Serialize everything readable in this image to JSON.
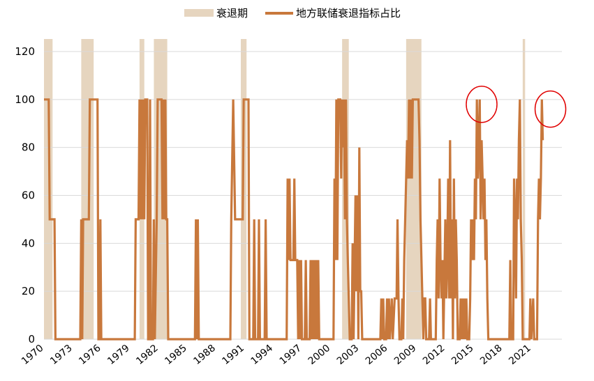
{
  "chart_data": {
    "type": "line",
    "title": "",
    "xlabel": "",
    "ylabel": "",
    "xlim": [
      1970,
      2024.2
    ],
    "ylim": [
      0,
      120
    ],
    "y_ticks": [
      0,
      20,
      40,
      60,
      80,
      100,
      120
    ],
    "x_ticks": [
      1970,
      1973,
      1976,
      1979,
      1982,
      1985,
      1988,
      1991,
      1994,
      1997,
      2000,
      2003,
      2006,
      2009,
      2012,
      2015,
      2018,
      2021
    ],
    "grid": "horizontal",
    "legend_position": "top-center",
    "legend": {
      "recession_label": "衰退期",
      "line_label": "地方联储衰退指标占比"
    },
    "colors": {
      "line": "#C8783C",
      "recession": "#E6D5BF",
      "highlight": "#E00000",
      "grid": "#D9D9D9"
    },
    "recessions": [
      [
        1970.0,
        1970.9
      ],
      [
        1973.9,
        1975.2
      ],
      [
        1980.0,
        1980.5
      ],
      [
        1981.5,
        1982.9
      ],
      [
        1990.6,
        1991.2
      ],
      [
        2001.2,
        2001.9
      ],
      [
        2007.9,
        2009.5
      ],
      [
        2020.1,
        2020.35
      ]
    ],
    "highlights": [
      {
        "x": 2015.8,
        "y": 98
      },
      {
        "x": 2023.0,
        "y": 96
      }
    ],
    "series": [
      {
        "name": "地方联储衰退指标占比",
        "points": [
          [
            1970.0,
            100
          ],
          [
            1970.5,
            100
          ],
          [
            1970.6,
            50
          ],
          [
            1971.1,
            50
          ],
          [
            1971.2,
            0
          ],
          [
            1973.8,
            0
          ],
          [
            1973.9,
            50
          ],
          [
            1974.0,
            0
          ],
          [
            1974.1,
            50
          ],
          [
            1974.7,
            50
          ],
          [
            1974.8,
            100
          ],
          [
            1975.6,
            100
          ],
          [
            1975.7,
            0
          ],
          [
            1975.8,
            0
          ],
          [
            1975.9,
            50
          ],
          [
            1976.0,
            0
          ],
          [
            1979.5,
            0
          ],
          [
            1979.6,
            50
          ],
          [
            1979.9,
            50
          ],
          [
            1980.0,
            100
          ],
          [
            1980.1,
            50
          ],
          [
            1980.2,
            100
          ],
          [
            1980.3,
            50
          ],
          [
            1980.4,
            100
          ],
          [
            1980.5,
            50
          ],
          [
            1980.6,
            100
          ],
          [
            1980.8,
            100
          ],
          [
            1980.9,
            0
          ],
          [
            1981.0,
            0
          ],
          [
            1981.1,
            100
          ],
          [
            1981.2,
            0
          ],
          [
            1981.4,
            0
          ],
          [
            1981.5,
            50
          ],
          [
            1981.6,
            0
          ],
          [
            1981.8,
            50
          ],
          [
            1981.9,
            100
          ],
          [
            1982.3,
            100
          ],
          [
            1982.4,
            50
          ],
          [
            1982.5,
            100
          ],
          [
            1982.6,
            50
          ],
          [
            1982.7,
            100
          ],
          [
            1982.8,
            50
          ],
          [
            1982.9,
            50
          ],
          [
            1983.0,
            0
          ],
          [
            1985.8,
            0
          ],
          [
            1985.9,
            50
          ],
          [
            1986.0,
            0
          ],
          [
            1986.1,
            50
          ],
          [
            1986.2,
            0
          ],
          [
            1989.5,
            0
          ],
          [
            1989.6,
            50
          ],
          [
            1989.8,
            100
          ],
          [
            1990.0,
            50
          ],
          [
            1990.8,
            50
          ],
          [
            1990.9,
            100
          ],
          [
            1991.4,
            100
          ],
          [
            1991.5,
            0
          ],
          [
            1991.9,
            0
          ],
          [
            1992.0,
            50
          ],
          [
            1992.1,
            0
          ],
          [
            1992.4,
            0
          ],
          [
            1992.5,
            50
          ],
          [
            1992.6,
            0
          ],
          [
            1993.1,
            0
          ],
          [
            1993.2,
            50
          ],
          [
            1993.3,
            0
          ],
          [
            1995.4,
            0
          ],
          [
            1995.5,
            67
          ],
          [
            1995.6,
            33
          ],
          [
            1995.7,
            67
          ],
          [
            1995.8,
            33
          ],
          [
            1996.1,
            33
          ],
          [
            1996.2,
            67
          ],
          [
            1996.3,
            33
          ],
          [
            1996.5,
            33
          ],
          [
            1996.6,
            0
          ],
          [
            1996.7,
            33
          ],
          [
            1996.8,
            0
          ],
          [
            1996.9,
            33
          ],
          [
            1997.0,
            0
          ],
          [
            1997.3,
            0
          ],
          [
            1997.4,
            33
          ],
          [
            1997.5,
            0
          ],
          [
            1997.8,
            0
          ],
          [
            1997.9,
            33
          ],
          [
            1998.0,
            0
          ],
          [
            1998.1,
            33
          ],
          [
            1998.2,
            0
          ],
          [
            1998.3,
            33
          ],
          [
            1998.4,
            0
          ],
          [
            1998.5,
            33
          ],
          [
            1998.6,
            0
          ],
          [
            1998.7,
            33
          ],
          [
            1998.8,
            0
          ],
          [
            2000.3,
            0
          ],
          [
            2000.4,
            67
          ],
          [
            2000.5,
            33
          ],
          [
            2000.6,
            100
          ],
          [
            2000.7,
            33
          ],
          [
            2000.8,
            100
          ],
          [
            2001.0,
            100
          ],
          [
            2001.1,
            67
          ],
          [
            2001.2,
            100
          ],
          [
            2001.3,
            80
          ],
          [
            2001.4,
            100
          ],
          [
            2001.5,
            50
          ],
          [
            2001.6,
            100
          ],
          [
            2001.7,
            50
          ],
          [
            2001.8,
            33
          ],
          [
            2002.0,
            0
          ],
          [
            2002.2,
            0
          ],
          [
            2002.3,
            40
          ],
          [
            2002.4,
            0
          ],
          [
            2002.6,
            60
          ],
          [
            2002.7,
            20
          ],
          [
            2002.8,
            60
          ],
          [
            2002.9,
            0
          ],
          [
            2003.0,
            80
          ],
          [
            2003.1,
            20
          ],
          [
            2003.2,
            20
          ],
          [
            2003.3,
            0
          ],
          [
            2005.2,
            0
          ],
          [
            2005.3,
            17
          ],
          [
            2005.4,
            0
          ],
          [
            2005.5,
            17
          ],
          [
            2005.6,
            0
          ],
          [
            2005.8,
            0
          ],
          [
            2005.9,
            17
          ],
          [
            2006.0,
            0
          ],
          [
            2006.1,
            17
          ],
          [
            2006.2,
            0
          ],
          [
            2006.4,
            17
          ],
          [
            2006.5,
            0
          ],
          [
            2006.7,
            17
          ],
          [
            2006.9,
            17
          ],
          [
            2007.0,
            50
          ],
          [
            2007.1,
            17
          ],
          [
            2007.2,
            0
          ],
          [
            2007.4,
            0
          ],
          [
            2007.5,
            17
          ],
          [
            2007.6,
            0
          ],
          [
            2007.7,
            33
          ],
          [
            2007.8,
            50
          ],
          [
            2008.0,
            83
          ],
          [
            2008.1,
            67
          ],
          [
            2008.2,
            100
          ],
          [
            2008.3,
            67
          ],
          [
            2008.4,
            100
          ],
          [
            2008.5,
            67
          ],
          [
            2008.6,
            100
          ],
          [
            2009.2,
            100
          ],
          [
            2009.3,
            83
          ],
          [
            2009.4,
            50
          ],
          [
            2009.5,
            33
          ],
          [
            2009.6,
            17
          ],
          [
            2009.7,
            0
          ],
          [
            2009.8,
            17
          ],
          [
            2009.9,
            17
          ],
          [
            2010.0,
            0
          ],
          [
            2010.3,
            0
          ],
          [
            2010.4,
            17
          ],
          [
            2010.5,
            0
          ],
          [
            2011.0,
            0
          ],
          [
            2011.1,
            33
          ],
          [
            2011.2,
            50
          ],
          [
            2011.3,
            17
          ],
          [
            2011.4,
            67
          ],
          [
            2011.5,
            33
          ],
          [
            2011.6,
            17
          ],
          [
            2011.7,
            33
          ],
          [
            2011.8,
            0
          ],
          [
            2012.0,
            50
          ],
          [
            2012.1,
            17
          ],
          [
            2012.2,
            33
          ],
          [
            2012.3,
            67
          ],
          [
            2012.4,
            17
          ],
          [
            2012.5,
            83
          ],
          [
            2012.6,
            17
          ],
          [
            2012.7,
            50
          ],
          [
            2012.8,
            0
          ],
          [
            2012.9,
            67
          ],
          [
            2013.0,
            17
          ],
          [
            2013.1,
            50
          ],
          [
            2013.2,
            33
          ],
          [
            2013.3,
            0
          ],
          [
            2013.5,
            0
          ],
          [
            2013.6,
            17
          ],
          [
            2013.7,
            0
          ],
          [
            2013.8,
            17
          ],
          [
            2013.9,
            0
          ],
          [
            2014.0,
            17
          ],
          [
            2014.1,
            0
          ],
          [
            2014.2,
            17
          ],
          [
            2014.3,
            0
          ],
          [
            2014.5,
            0
          ],
          [
            2014.6,
            17
          ],
          [
            2014.7,
            50
          ],
          [
            2014.8,
            33
          ],
          [
            2014.9,
            50
          ],
          [
            2015.0,
            33
          ],
          [
            2015.1,
            67
          ],
          [
            2015.2,
            50
          ],
          [
            2015.3,
            100
          ],
          [
            2015.4,
            67
          ],
          [
            2015.5,
            83
          ],
          [
            2015.6,
            100
          ],
          [
            2015.7,
            50
          ],
          [
            2015.8,
            83
          ],
          [
            2015.9,
            67
          ],
          [
            2016.0,
            50
          ],
          [
            2016.1,
            67
          ],
          [
            2016.2,
            33
          ],
          [
            2016.3,
            50
          ],
          [
            2016.4,
            17
          ],
          [
            2016.5,
            0
          ],
          [
            2018.7,
            0
          ],
          [
            2018.8,
            33
          ],
          [
            2018.9,
            0
          ],
          [
            2019.1,
            0
          ],
          [
            2019.2,
            67
          ],
          [
            2019.3,
            50
          ],
          [
            2019.4,
            17
          ],
          [
            2019.5,
            67
          ],
          [
            2019.6,
            50
          ],
          [
            2019.7,
            83
          ],
          [
            2019.8,
            100
          ],
          [
            2019.9,
            50
          ],
          [
            2020.0,
            33
          ],
          [
            2020.1,
            0
          ],
          [
            2020.8,
            0
          ],
          [
            2020.9,
            17
          ],
          [
            2021.0,
            0
          ],
          [
            2021.2,
            17
          ],
          [
            2021.3,
            0
          ],
          [
            2021.6,
            0
          ],
          [
            2021.7,
            50
          ],
          [
            2021.8,
            67
          ],
          [
            2021.9,
            50
          ],
          [
            2022.0,
            67
          ],
          [
            2022.1,
            100
          ],
          [
            2022.2,
            83
          ]
        ]
      }
    ]
  }
}
